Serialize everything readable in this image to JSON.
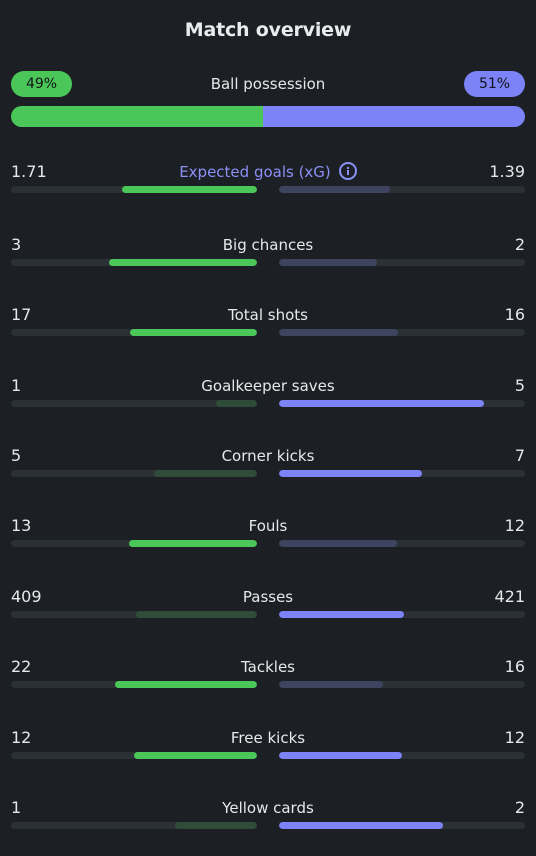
{
  "header": {
    "title": "Match overview"
  },
  "possession": {
    "label": "Ball possession",
    "home_text": "49%",
    "away_text": "51%",
    "home": 0.49,
    "away": 0.51
  },
  "colors": {
    "home_strong": "#4bc658",
    "home_weak": "#2f4b3a",
    "away_strong": "#7b83f6",
    "away_weak": "#3e445f",
    "track": "#2b3035",
    "background": "#1c2024"
  },
  "stats": [
    {
      "label": "Expected goals (xG)",
      "home": "1.71",
      "away": "1.39",
      "home_ratio": 0.55,
      "away_ratio": 0.45,
      "highlight": true,
      "icon": "info-icon"
    },
    {
      "label": "Big chances",
      "home": "3",
      "away": "2",
      "home_ratio": 0.6,
      "away_ratio": 0.4
    },
    {
      "label": "Total shots",
      "home": "17",
      "away": "16",
      "home_ratio": 0.515,
      "away_ratio": 0.485
    },
    {
      "label": "Goalkeeper saves",
      "home": "1",
      "away": "5",
      "home_ratio": 0.167,
      "away_ratio": 0.833
    },
    {
      "label": "Corner kicks",
      "home": "5",
      "away": "7",
      "home_ratio": 0.417,
      "away_ratio": 0.583
    },
    {
      "label": "Fouls",
      "home": "13",
      "away": "12",
      "home_ratio": 0.52,
      "away_ratio": 0.48
    },
    {
      "label": "Passes",
      "home": "409",
      "away": "421",
      "home_ratio": 0.493,
      "away_ratio": 0.507
    },
    {
      "label": "Tackles",
      "home": "22",
      "away": "16",
      "home_ratio": 0.579,
      "away_ratio": 0.421
    },
    {
      "label": "Free kicks",
      "home": "12",
      "away": "12",
      "home_ratio": 0.5,
      "away_ratio": 0.5
    },
    {
      "label": "Yellow cards",
      "home": "1",
      "away": "2",
      "home_ratio": 0.333,
      "away_ratio": 0.667
    }
  ]
}
